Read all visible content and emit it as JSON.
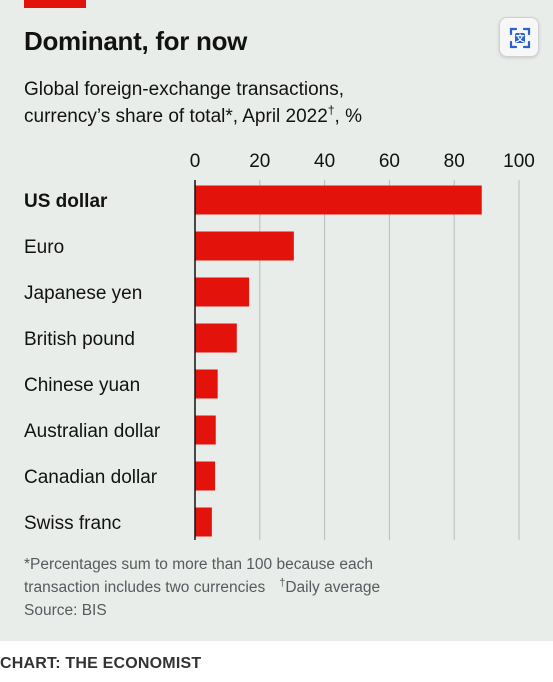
{
  "title": "Dominant, for now",
  "subtitle_line1": "Global foreign-exchange transactions,",
  "subtitle_line2_pre": "currency’s share of total*, April 2022",
  "subtitle_dagger": "†",
  "subtitle_line2_post": ", %",
  "footnote_line1": "*Percentages sum to more than 100 because each",
  "footnote_line2": "transaction includes two currencies",
  "footnote_dagger": "†",
  "footnote_dagger_text": "Daily average",
  "footnote_source": "Source: BIS",
  "credit": "CHART: THE ECONOMIST",
  "icon_name": "translate-icon",
  "colors": {
    "bar": "#e3120b",
    "background": "#e9ede9",
    "brand_red": "#e3120b"
  },
  "chart_data": {
    "type": "bar",
    "orientation": "horizontal",
    "categories": [
      "US dollar",
      "Euro",
      "Japanese yen",
      "British pound",
      "Chinese yuan",
      "Australian dollar",
      "Canadian dollar",
      "Swiss franc"
    ],
    "values": [
      88.5,
      30.5,
      16.7,
      12.9,
      7.0,
      6.4,
      6.2,
      5.2
    ],
    "xlim": [
      0,
      100
    ],
    "xticks": [
      "0",
      "20",
      "40",
      "60",
      "80",
      "100"
    ],
    "grid": "vertical",
    "xlabel": "",
    "ylabel": ""
  }
}
